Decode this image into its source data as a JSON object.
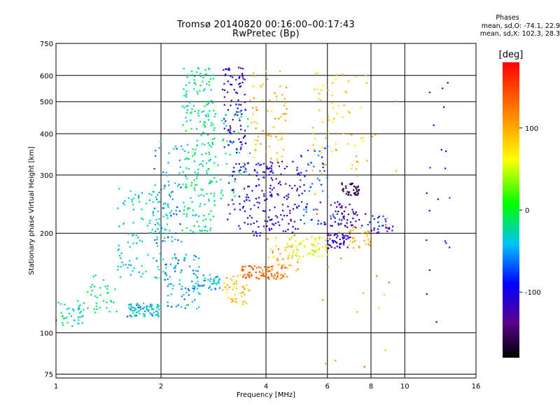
{
  "chart_data": {
    "type": "scatter",
    "title": "Tromsø 20140820 00:16:00–00:17:43",
    "subtitle": "RwPretec (Bp)",
    "xlabel": "Frequency [MHz]",
    "ylabel": "Stationary phase Virtual Height [km]",
    "xscale": "log",
    "yscale": "log",
    "xlim": [
      1,
      16
    ],
    "ylim": [
      73,
      750
    ],
    "xticks": [
      1,
      2,
      4,
      6,
      8,
      10,
      16
    ],
    "yticks": [
      75,
      100,
      200,
      300,
      400,
      500,
      600,
      750
    ],
    "grid": true,
    "colorbar": {
      "label": "[deg]",
      "range": [
        -180,
        180
      ],
      "ticks": [
        100,
        0,
        -100
      ],
      "colors": [
        "#000000",
        "#5a008c",
        "#0000ff",
        "#00bfff",
        "#00ff00",
        "#ffff00",
        "#ff9900",
        "#ff0000"
      ]
    },
    "stats": {
      "heading": "Phases",
      "line_o": "mean, sd,O: -74.1, 22.9",
      "line_x": "mean, sd,X: 102.3, 28.3"
    },
    "clusters": [
      {
        "x": [
          1.0,
          1.2
        ],
        "y": [
          103,
          125
        ],
        "phase": -25,
        "n": 40
      },
      {
        "x": [
          1.2,
          1.5
        ],
        "y": [
          115,
          150
        ],
        "phase": -20,
        "n": 35
      },
      {
        "x": [
          1.5,
          2.1
        ],
        "y": [
          145,
          280
        ],
        "phase": -30,
        "n": 120
      },
      {
        "x": [
          1.6,
          2.0
        ],
        "y": [
          112,
          123
        ],
        "phase": -40,
        "n": 80
      },
      {
        "x": [
          1.9,
          2.3
        ],
        "y": [
          160,
          380
        ],
        "phase": -55,
        "n": 70
      },
      {
        "x": [
          2.05,
          2.6
        ],
        "y": [
          118,
          175
        ],
        "phase": -45,
        "n": 80
      },
      {
        "x": [
          2.3,
          2.85
        ],
        "y": [
          200,
          640
        ],
        "phase": -20,
        "n": 220
      },
      {
        "x": [
          2.5,
          3.0
        ],
        "y": [
          135,
          150
        ],
        "phase": -40,
        "n": 45
      },
      {
        "x": [
          2.7,
          3.6
        ],
        "y": [
          250,
          470
        ],
        "phase": -25,
        "n": 60
      },
      {
        "x": [
          3.0,
          3.5
        ],
        "y": [
          350,
          640
        ],
        "phase": -110,
        "n": 90
      },
      {
        "x": [
          3.1,
          4.2
        ],
        "y": [
          195,
          330
        ],
        "phase": -100,
        "n": 110
      },
      {
        "x": [
          3.0,
          3.6
        ],
        "y": [
          122,
          150
        ],
        "phase": 90,
        "n": 50
      },
      {
        "x": [
          3.4,
          4.6
        ],
        "y": [
          145,
          160
        ],
        "phase": 130,
        "n": 90
      },
      {
        "x": [
          3.6,
          4.6
        ],
        "y": [
          330,
          620
        ],
        "phase": 95,
        "n": 70
      },
      {
        "x": [
          3.9,
          5.0
        ],
        "y": [
          200,
          330
        ],
        "phase": -120,
        "n": 80
      },
      {
        "x": [
          4.0,
          5.0
        ],
        "y": [
          150,
          200
        ],
        "phase": 100,
        "n": 40
      },
      {
        "x": [
          4.6,
          6.0
        ],
        "y": [
          170,
          195
        ],
        "phase": 60,
        "n": 60
      },
      {
        "x": [
          4.9,
          6.0
        ],
        "y": [
          210,
          380
        ],
        "phase": -80,
        "n": 60
      },
      {
        "x": [
          6.0,
          7.0
        ],
        "y": [
          180,
          200
        ],
        "phase": -110,
        "n": 50
      },
      {
        "x": [
          6.9,
          8.0
        ],
        "y": [
          180,
          210
        ],
        "phase": 100,
        "n": 30
      },
      {
        "x": [
          6.1,
          7.3
        ],
        "y": [
          208,
          250
        ],
        "phase": -140,
        "n": 40
      },
      {
        "x": [
          6.6,
          7.4
        ],
        "y": [
          260,
          285
        ],
        "phase": -160,
        "n": 40
      },
      {
        "x": [
          5.4,
          7.8
        ],
        "y": [
          300,
          620
        ],
        "phase": 80,
        "n": 60
      },
      {
        "x": [
          6.0,
          9.0
        ],
        "y": [
          210,
          230
        ],
        "phase": -90,
        "n": 30
      },
      {
        "x": [
          8.0,
          9.5
        ],
        "y": [
          200,
          215
        ],
        "phase": -110,
        "n": 15
      },
      {
        "x": [
          5.5,
          9.5
        ],
        "y": [
          75,
          620
        ],
        "phase": 110,
        "n": 35
      },
      {
        "x": [
          11.5,
          13.5
        ],
        "y": [
          100,
          650
        ],
        "phase": -100,
        "n": 20
      }
    ]
  }
}
